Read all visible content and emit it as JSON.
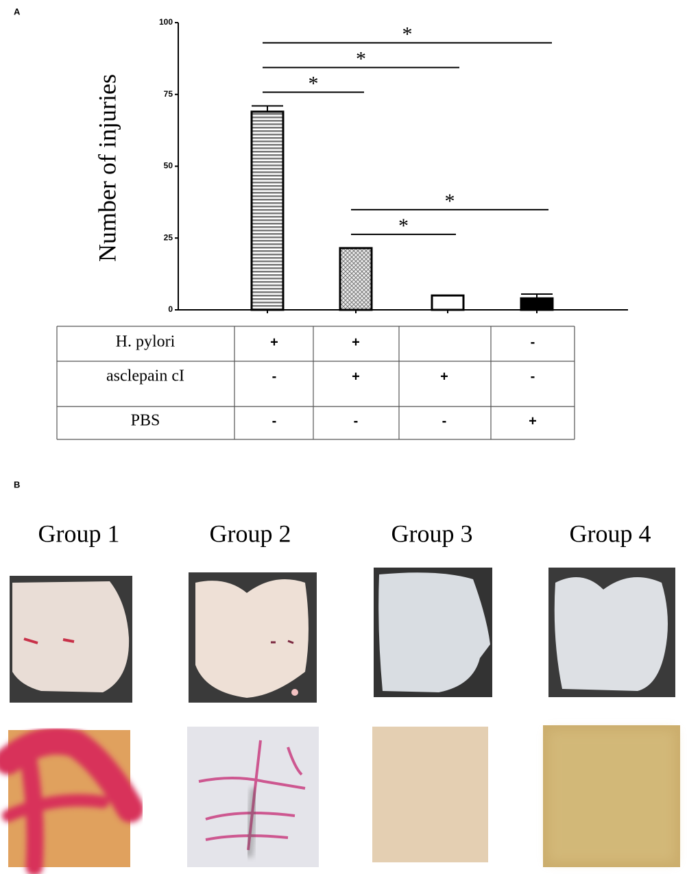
{
  "panel_labels": [
    "A",
    "B"
  ],
  "chart_data": {
    "type": "bar",
    "ylabel": "Number of injuries",
    "values": [
      69,
      21.5,
      5,
      4
    ],
    "errors": [
      2,
      0,
      0,
      1.5
    ],
    "colors": [
      "#888888",
      "#c8c8c8",
      "#ffffff",
      "#000000"
    ],
    "patterns": [
      "horizontal-stripes",
      "crosshatch",
      "solid",
      "solid"
    ],
    "ylim": [
      0,
      100
    ],
    "yticks": [
      0,
      25,
      50,
      75,
      100
    ],
    "significance": [
      {
        "pair": [
          0,
          1
        ],
        "label": "*"
      },
      {
        "pair": [
          0,
          2
        ],
        "label": "*"
      },
      {
        "pair": [
          0,
          3
        ],
        "label": "*"
      },
      {
        "pair": [
          1,
          2
        ],
        "label": "*"
      },
      {
        "pair": [
          1,
          3
        ],
        "label": "*"
      }
    ]
  },
  "table": {
    "rows": [
      {
        "label": "H. pylori",
        "cells": [
          "+",
          "+",
          null,
          "-"
        ]
      },
      {
        "label": "asclepain cI",
        "cells": [
          "-",
          "+",
          "+",
          "-"
        ]
      },
      {
        "label": "PBS",
        "cells": [
          "-",
          "-",
          "-",
          "+"
        ]
      }
    ]
  },
  "photos": {
    "groups": [
      "Group 1",
      "Group 2",
      "Group 3",
      "Group 4"
    ]
  }
}
